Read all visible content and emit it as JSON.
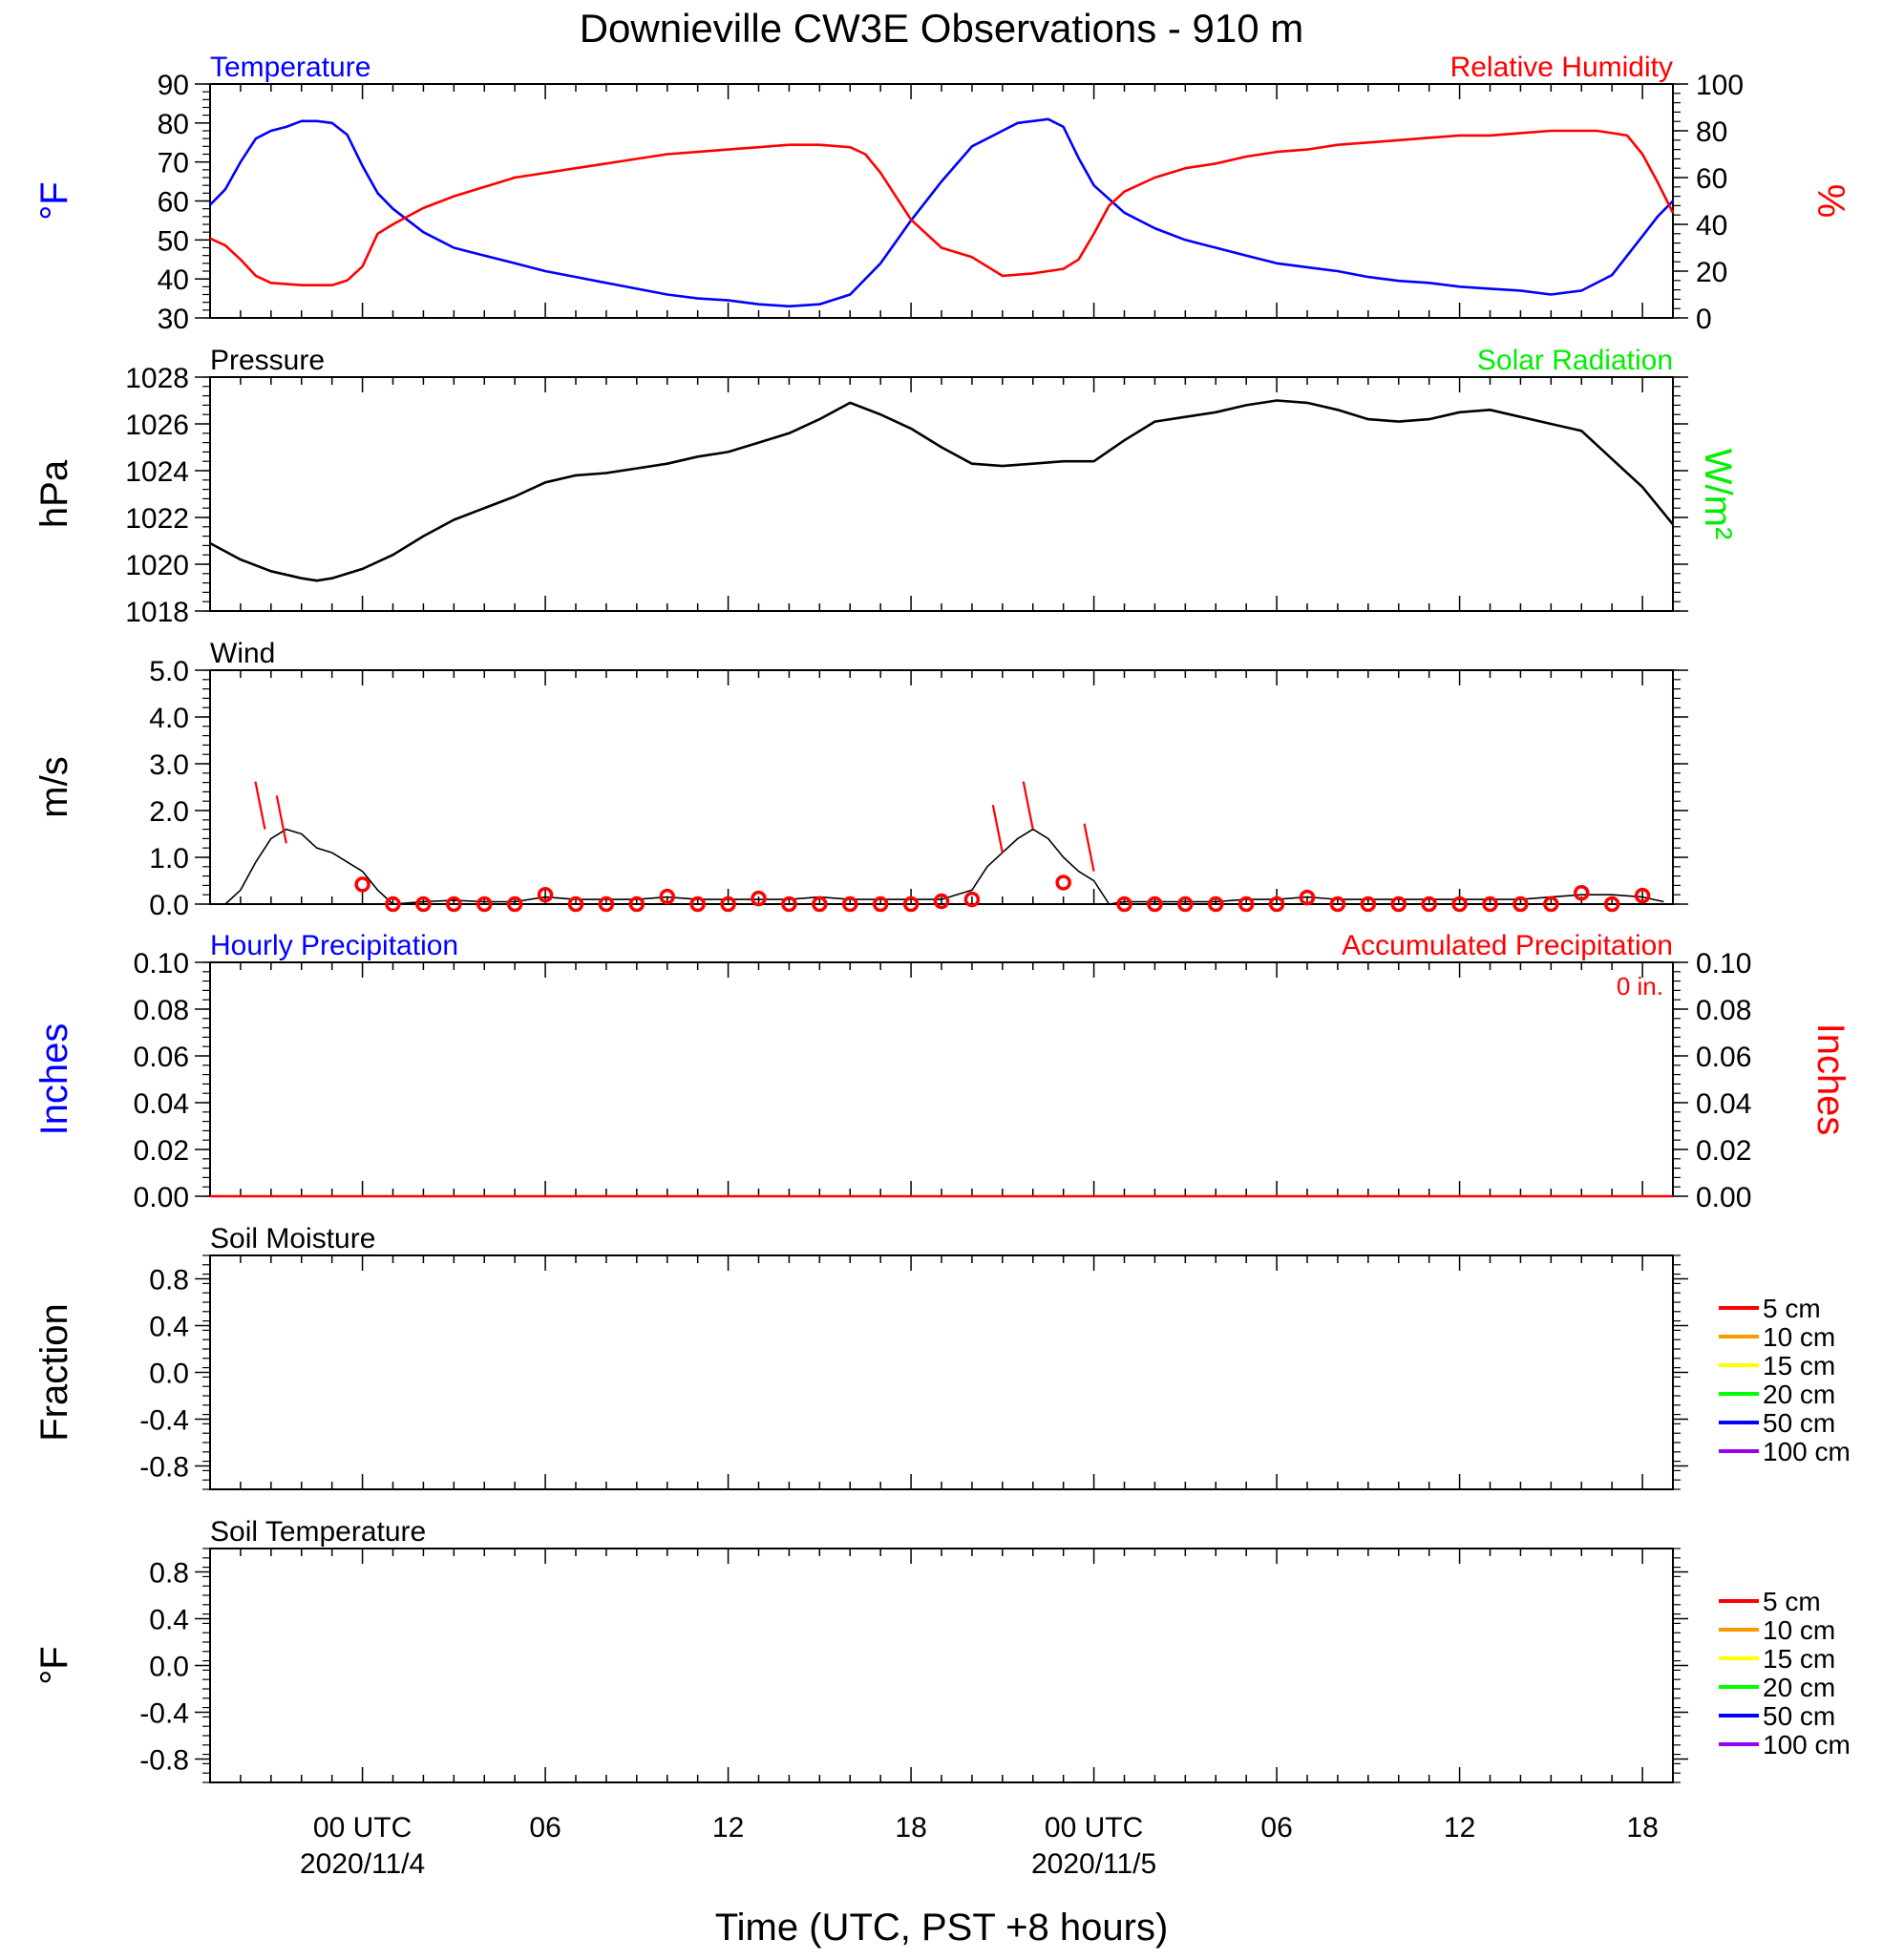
{
  "title": "Downieville CW3E Observations - 910 m",
  "xaxis": {
    "label": "Time (UTC, PST +8 hours)",
    "range_hours": [
      -5,
      43
    ],
    "ticks": [
      {
        "h": 0,
        "label": "00 UTC",
        "sub": "2020/11/4"
      },
      {
        "h": 6,
        "label": "06",
        "sub": ""
      },
      {
        "h": 12,
        "label": "12",
        "sub": ""
      },
      {
        "h": 18,
        "label": "18",
        "sub": ""
      },
      {
        "h": 24,
        "label": "00 UTC",
        "sub": "2020/11/5"
      },
      {
        "h": 30,
        "label": "06",
        "sub": ""
      },
      {
        "h": 36,
        "label": "12",
        "sub": ""
      },
      {
        "h": 42,
        "label": "18",
        "sub": ""
      }
    ]
  },
  "colors": {
    "blue": "#0000ff",
    "red": "#ff0000",
    "green": "#00ee00",
    "black": "#000000"
  },
  "chart_data": [
    {
      "id": "temp_rh",
      "type": "line",
      "title_left": "Temperature",
      "title_right": "Relative Humidity",
      "ylabel": "°F",
      "ylabel_right": "%",
      "ylim": [
        30,
        90
      ],
      "yticks": [
        "90",
        "80",
        "70",
        "60",
        "50",
        "40",
        "30"
      ],
      "ylim_right": [
        0,
        100
      ],
      "yticks_right": [
        "100",
        "80",
        "60",
        "40",
        "20",
        "0"
      ],
      "series": [
        {
          "name": "Temperature",
          "color": "#0000ff",
          "axis": "left",
          "x": [
            -5,
            -4.5,
            -4,
            -3.5,
            -3,
            -2.5,
            -2,
            -1.5,
            -1,
            -0.5,
            0,
            0.5,
            1,
            2,
            3,
            4,
            5,
            6,
            7,
            8,
            9,
            10,
            11,
            12,
            13,
            14,
            15,
            16,
            17,
            18,
            19,
            20,
            21,
            21.5,
            22,
            22.5,
            23,
            23.5,
            24,
            25,
            26,
            27,
            28,
            29,
            30,
            31,
            32,
            33,
            34,
            35,
            36,
            37,
            38,
            39,
            40,
            41,
            42,
            42.5,
            43
          ],
          "y": [
            59,
            63,
            70,
            76,
            78,
            79,
            80.5,
            80.5,
            80,
            77,
            69,
            62,
            58,
            52,
            48,
            46,
            44,
            42,
            40.5,
            39,
            37.5,
            36,
            35,
            34.5,
            33.5,
            33,
            33.5,
            36,
            44,
            55,
            65,
            74,
            78,
            80,
            80.5,
            81,
            79,
            71,
            64,
            57,
            53,
            50,
            48,
            46,
            44,
            43,
            42,
            40.5,
            39.5,
            39,
            38,
            37.5,
            37,
            36,
            37,
            41,
            51,
            56,
            60
          ]
        },
        {
          "name": "Relative Humidity",
          "color": "#ff0000",
          "axis": "right",
          "x": [
            -5,
            -4.5,
            -4,
            -3.5,
            -3,
            -2,
            -1,
            -0.5,
            0,
            0.5,
            1,
            2,
            3,
            4,
            5,
            6,
            7,
            8,
            9,
            10,
            11,
            12,
            13,
            14,
            15,
            16,
            16.5,
            17,
            17.5,
            18,
            19,
            20,
            21,
            22,
            23,
            23.5,
            24,
            24.5,
            25,
            26,
            27,
            28,
            29,
            30,
            31,
            32,
            33,
            34,
            35,
            36,
            37,
            38,
            39,
            40,
            40.5,
            41,
            41.5,
            42,
            42.5,
            43
          ],
          "y": [
            34,
            31,
            25,
            18,
            15,
            14,
            14,
            16,
            22,
            36,
            40,
            47,
            52,
            56,
            60,
            62,
            64,
            66,
            68,
            70,
            71,
            72,
            73,
            74,
            74,
            73,
            70,
            62,
            52,
            42,
            30,
            26,
            18,
            19,
            21,
            25,
            36,
            48,
            54,
            60,
            64,
            66,
            69,
            71,
            72,
            74,
            75,
            76,
            77,
            78,
            78,
            79,
            80,
            80,
            80,
            79,
            78,
            70,
            58,
            45
          ]
        }
      ]
    },
    {
      "id": "pressure",
      "type": "line",
      "title_left": "Pressure",
      "title_right": "Solar Radiation",
      "ylabel": "hPa",
      "ylabel_right": "W/m²",
      "ylim": [
        1018,
        1028
      ],
      "yticks": [
        "1028",
        "1026",
        "1024",
        "1022",
        "1020",
        "1018"
      ],
      "series": [
        {
          "name": "Pressure",
          "color": "#000000",
          "x": [
            -5,
            -4,
            -3,
            -2,
            -1.5,
            -1,
            0,
            1,
            2,
            3,
            4,
            5,
            6,
            7,
            8,
            9,
            10,
            11,
            12,
            13,
            14,
            15,
            16,
            17,
            18,
            19,
            20,
            21,
            22,
            23,
            24,
            25,
            26,
            27,
            28,
            29,
            30,
            31,
            32,
            33,
            34,
            35,
            36,
            37,
            38,
            39,
            40,
            41,
            42,
            43
          ],
          "y": [
            1020.9,
            1020.2,
            1019.7,
            1019.4,
            1019.3,
            1019.4,
            1019.8,
            1020.4,
            1021.2,
            1021.9,
            1022.4,
            1022.9,
            1023.5,
            1023.8,
            1023.9,
            1024.1,
            1024.3,
            1024.6,
            1024.8,
            1025.2,
            1025.6,
            1026.2,
            1026.9,
            1026.4,
            1025.8,
            1025,
            1024.3,
            1024.2,
            1024.3,
            1024.4,
            1024.4,
            1025.3,
            1026.1,
            1026.3,
            1026.5,
            1026.8,
            1027,
            1026.9,
            1026.6,
            1026.2,
            1026.1,
            1026.2,
            1026.5,
            1026.6,
            1026.3,
            1026,
            1025.7,
            1024.5,
            1023.3,
            1021.7
          ]
        }
      ]
    },
    {
      "id": "wind",
      "type": "line",
      "title_left": "Wind",
      "ylabel": "m/s",
      "ylim": [
        0,
        5
      ],
      "yticks": [
        "5.0",
        "4.0",
        "3.0",
        "2.0",
        "1.0",
        "0.0"
      ],
      "series": [
        {
          "name": "Wind",
          "color": "#000000",
          "x": [
            -4.5,
            -4,
            -3.5,
            -3,
            -2.5,
            -2,
            -1.5,
            -1,
            -0.5,
            0,
            0.5,
            1,
            2,
            3,
            4,
            5,
            6,
            7,
            8,
            9,
            10,
            11,
            12,
            13,
            14,
            15,
            16,
            17,
            18,
            19,
            20,
            20.5,
            21,
            21.5,
            22,
            22.5,
            23,
            23.5,
            24,
            24.5,
            25,
            26,
            27,
            28,
            29,
            30,
            31,
            32,
            33,
            34,
            35,
            36,
            37,
            38,
            39,
            40,
            41,
            42,
            42.7
          ],
          "y": [
            0,
            0.3,
            0.9,
            1.4,
            1.6,
            1.5,
            1.2,
            1.1,
            0.9,
            0.7,
            0.3,
            0,
            0.05,
            0.08,
            0.05,
            0.05,
            0.15,
            0.1,
            0.1,
            0.1,
            0.15,
            0.1,
            0.1,
            0.1,
            0.1,
            0.15,
            0.1,
            0.1,
            0.1,
            0.1,
            0.3,
            0.8,
            1.1,
            1.4,
            1.6,
            1.4,
            1.0,
            0.7,
            0.5,
            0,
            0.05,
            0.05,
            0.05,
            0.05,
            0.1,
            0.1,
            0.15,
            0.1,
            0.1,
            0.1,
            0.1,
            0.1,
            0.1,
            0.1,
            0.15,
            0.2,
            0.2,
            0.15,
            0.05
          ]
        },
        {
          "name": "Hourly Wind",
          "color": "#ff0000",
          "marker": "circle",
          "x": [
            0,
            1,
            2,
            3,
            4,
            5,
            6,
            7,
            8,
            9,
            10,
            11,
            12,
            13,
            14,
            15,
            16,
            17,
            18,
            19,
            20,
            21,
            22,
            23,
            24,
            25,
            26,
            27,
            28,
            29,
            30,
            31,
            32,
            33,
            34,
            35,
            36,
            37,
            38,
            39,
            40,
            41,
            42
          ],
          "y": [
            0.42,
            0,
            0,
            0,
            0,
            0,
            0.2,
            0,
            0,
            0,
            0.16,
            0,
            0,
            0.12,
            0,
            0,
            0,
            0,
            0,
            0.06,
            0.1,
            null,
            null,
            0.46,
            null,
            0,
            0,
            0,
            0,
            0,
            0,
            0.14,
            0,
            0,
            0,
            0,
            0,
            0,
            0,
            0,
            0.24,
            0,
            0.18
          ]
        },
        {
          "name": "Wind Barbs",
          "color": "#ff0000",
          "type": "barb",
          "x": [
            -3.2,
            -2.5,
            21,
            22,
            24
          ],
          "y": [
            1.6,
            1.3,
            1.1,
            1.6,
            0.7
          ]
        }
      ]
    },
    {
      "id": "precip",
      "type": "line",
      "title_left": "Hourly Precipitation",
      "title_right": "Accumulated Precipitation",
      "annotation": "0 in.",
      "ylabel": "Inches",
      "ylabel_right": "Inches",
      "ylim": [
        0,
        0.1
      ],
      "yticks": [
        "0.10",
        "0.08",
        "0.06",
        "0.04",
        "0.02",
        "0.00"
      ],
      "yticks_right": [
        "0.10",
        "0.08",
        "0.06",
        "0.04",
        "0.02",
        "0.00"
      ],
      "series": [
        {
          "name": "Accumulated Precipitation",
          "color": "#ff0000",
          "x": [
            -5,
            43
          ],
          "y": [
            0,
            0
          ]
        }
      ]
    },
    {
      "id": "soil_moisture",
      "type": "line",
      "title_left": "Soil Moisture",
      "ylabel": "Fraction",
      "ylim": [
        -1,
        1
      ],
      "yticks": [
        "0.8",
        "0.4",
        "0.0",
        "-0.4",
        "-0.8"
      ],
      "legend": [
        {
          "label": "5 cm",
          "color": "#ff0000"
        },
        {
          "label": "10 cm",
          "color": "#ff9900"
        },
        {
          "label": "15 cm",
          "color": "#ffff00"
        },
        {
          "label": "20 cm",
          "color": "#00ff00"
        },
        {
          "label": "50 cm",
          "color": "#0000ff"
        },
        {
          "label": "100 cm",
          "color": "#9900ee"
        }
      ]
    },
    {
      "id": "soil_temperature",
      "type": "line",
      "title_left": "Soil Temperature",
      "ylabel": "°F",
      "ylim": [
        -1,
        1
      ],
      "yticks": [
        "0.8",
        "0.4",
        "0.0",
        "-0.4",
        "-0.8"
      ],
      "legend": [
        {
          "label": "5 cm",
          "color": "#ff0000"
        },
        {
          "label": "10 cm",
          "color": "#ff9900"
        },
        {
          "label": "15 cm",
          "color": "#ffff00"
        },
        {
          "label": "20 cm",
          "color": "#00ff00"
        },
        {
          "label": "50 cm",
          "color": "#0000ff"
        },
        {
          "label": "100 cm",
          "color": "#9900ee"
        }
      ]
    }
  ]
}
